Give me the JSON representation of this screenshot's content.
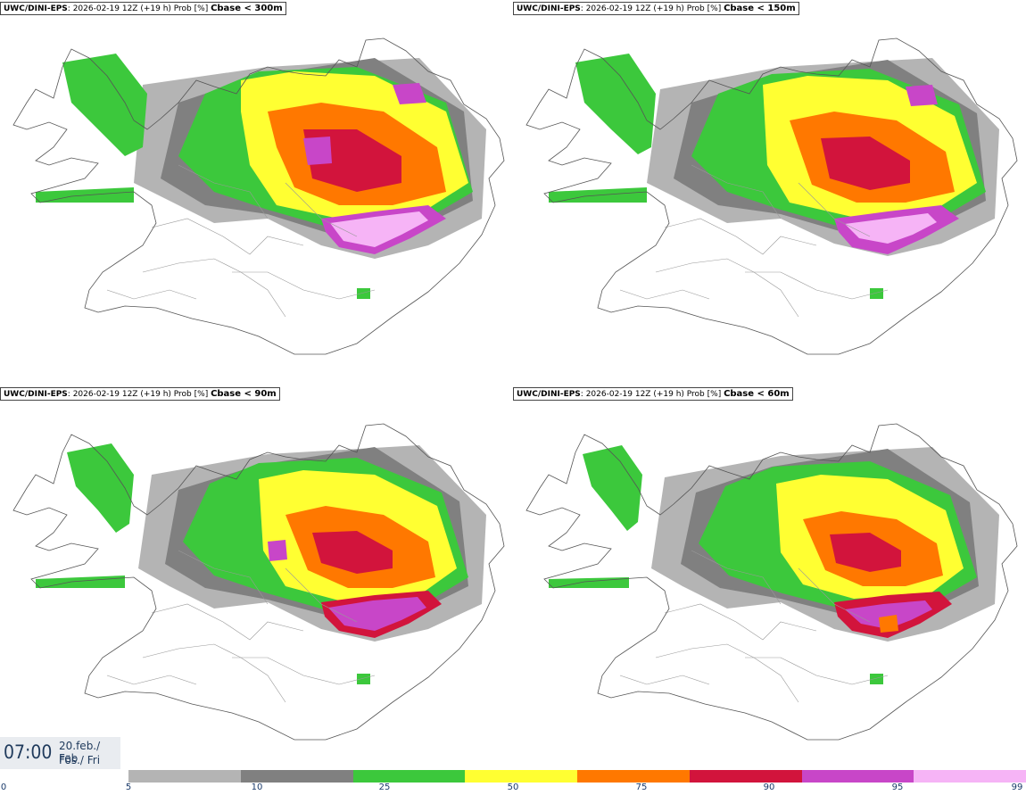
{
  "panels": [
    {
      "model": "UWC/DINI-EPS",
      "run": ": 2026-02-19 12Z (+19 h) Prob [%] ",
      "threshold": "Cbase < 300m"
    },
    {
      "model": "UWC/DINI-EPS",
      "run": ": 2026-02-19 12Z (+19 h) Prob [%] ",
      "threshold": "Cbase < 150m"
    },
    {
      "model": "UWC/DINI-EPS",
      "run": ": 2026-02-19 12Z (+19 h) Prob [%] ",
      "threshold": "Cbase < 90m"
    },
    {
      "model": "UWC/DINI-EPS",
      "run": ": 2026-02-19 12Z (+19 h) Prob [%] ",
      "threshold": "Cbase < 60m"
    }
  ],
  "time": {
    "hour": "07:00",
    "date": "20.feb./ Feb",
    "day": "Fös./ Fri"
  },
  "legend": {
    "ticks": [
      "0",
      "5",
      "10",
      "25",
      "50",
      "75",
      "90",
      "95",
      "99"
    ],
    "colors": [
      "#b4b4b4",
      "#808080",
      "#3cc83c",
      "#ffff32",
      "#ff7800",
      "#d2143c",
      "#c846c8",
      "#f6b4f6"
    ]
  }
}
